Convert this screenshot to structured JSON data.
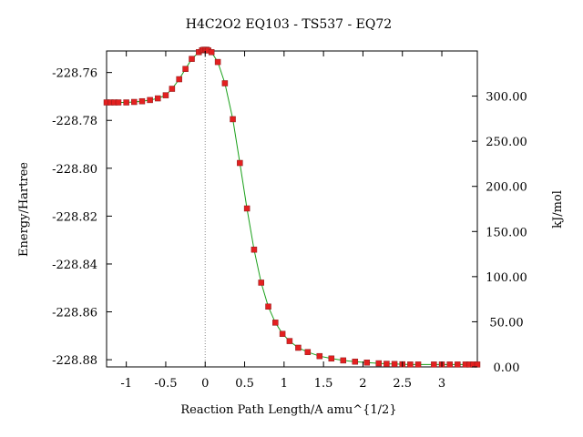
{
  "chart_data": {
    "type": "line",
    "title": "H4C2O2    EQ103 - TS537 - EQ72",
    "xlabel": "Reaction  Path  Length/A  amu^{1/2}",
    "ylabel": "Energy/Hartree",
    "y2label": "kJ/mol",
    "xlim": [
      -1.25,
      3.45
    ],
    "ylim": [
      -228.883,
      -228.751
    ],
    "y2lim": [
      0,
      350
    ],
    "x_ticks": [
      -1,
      -0.5,
      0,
      0.5,
      1,
      1.5,
      2,
      2.5,
      3
    ],
    "x_tick_labels": [
      "-1",
      "-0.5",
      "0",
      "0.5",
      "1",
      "1.5",
      "2",
      "2.5",
      "3"
    ],
    "y_ticks": [
      -228.76,
      -228.78,
      -228.8,
      -228.82,
      -228.84,
      -228.86,
      -228.88
    ],
    "y_tick_labels": [
      "-228.76",
      "-228.78",
      "-228.80",
      "-228.82",
      "-228.84",
      "-228.86",
      "-228.88"
    ],
    "y2_ticks": [
      0,
      50,
      100,
      150,
      200,
      250,
      300
    ],
    "y2_tick_labels": [
      "0.00",
      "50.00",
      "100.00",
      "150.00",
      "200.00",
      "250.00",
      "300.00"
    ],
    "ts_x": 0,
    "colors": {
      "line": "#1aa01a",
      "marker": "#e32020",
      "marker_edge": "#8a1a1a",
      "ts_line": "#888888"
    },
    "grid": false,
    "series": [
      {
        "x": [
          -1.25,
          -1.2,
          -1.15,
          -1.1,
          -1.0,
          -0.9,
          -0.8,
          -0.7,
          -0.6,
          -0.5,
          -0.42,
          -0.33,
          -0.25,
          -0.17,
          -0.08,
          -0.04,
          -0.02,
          0,
          0.02,
          0.04,
          0.08,
          0.16,
          0.25,
          0.35,
          0.44,
          0.53,
          0.62,
          0.71,
          0.8,
          0.89,
          0.98,
          1.07,
          1.18,
          1.3,
          1.45,
          1.6,
          1.75,
          1.9,
          2.05,
          2.2,
          2.3,
          2.4,
          2.5,
          2.6,
          2.7,
          2.9,
          3.0,
          3.1,
          3.2,
          3.3,
          3.35,
          3.4,
          3.45
        ],
        "y": [
          -228.7725,
          -228.7725,
          -228.7725,
          -228.7725,
          -228.7725,
          -228.7723,
          -228.772,
          -228.7715,
          -228.7708,
          -228.7695,
          -228.7668,
          -228.7628,
          -228.7585,
          -228.7543,
          -228.7515,
          -228.7507,
          -228.7505,
          -228.7505,
          -228.7505,
          -228.7508,
          -228.7515,
          -228.7556,
          -228.7645,
          -228.7795,
          -228.7978,
          -228.8168,
          -228.834,
          -228.8478,
          -228.8578,
          -228.8645,
          -228.8692,
          -228.8722,
          -228.875,
          -228.8768,
          -228.8785,
          -228.8795,
          -228.8803,
          -228.8808,
          -228.8812,
          -228.8815,
          -228.8817,
          -228.8818,
          -228.8819,
          -228.882,
          -228.882,
          -228.882,
          -228.882,
          -228.882,
          -228.882,
          -228.882,
          -228.882,
          -228.882,
          -228.882
        ]
      }
    ]
  }
}
